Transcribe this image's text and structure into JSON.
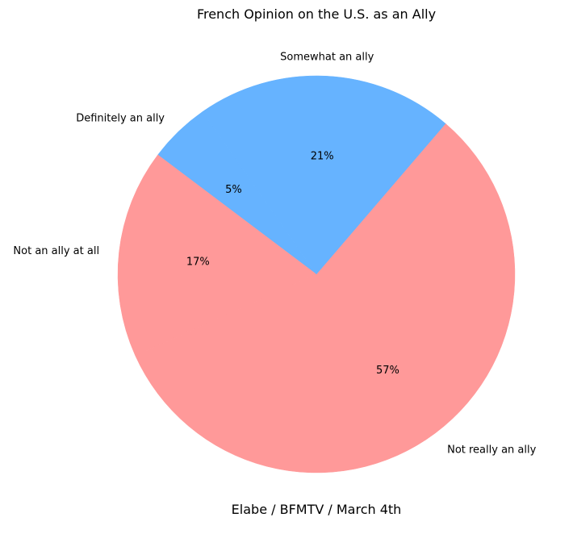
{
  "chart_data": {
    "type": "pie",
    "title": "French Opinion on the U.S. as an Ally",
    "caption": "Elabe / BFMTV / March 4th",
    "start_angle_deg": 125,
    "direction": "counterclockwise",
    "slices": [
      {
        "label": "Definitely an ally",
        "value": 5,
        "display": "5%",
        "color": "#66b3ff"
      },
      {
        "label": "Not an ally at all",
        "value": 17,
        "display": "17%",
        "color": "#ff9999"
      },
      {
        "label": "Not really an ally",
        "value": 57,
        "display": "57%",
        "color": "#ff9999"
      },
      {
        "label": "Somewhat an ally",
        "value": 21,
        "display": "21%",
        "color": "#66b3ff"
      }
    ]
  }
}
